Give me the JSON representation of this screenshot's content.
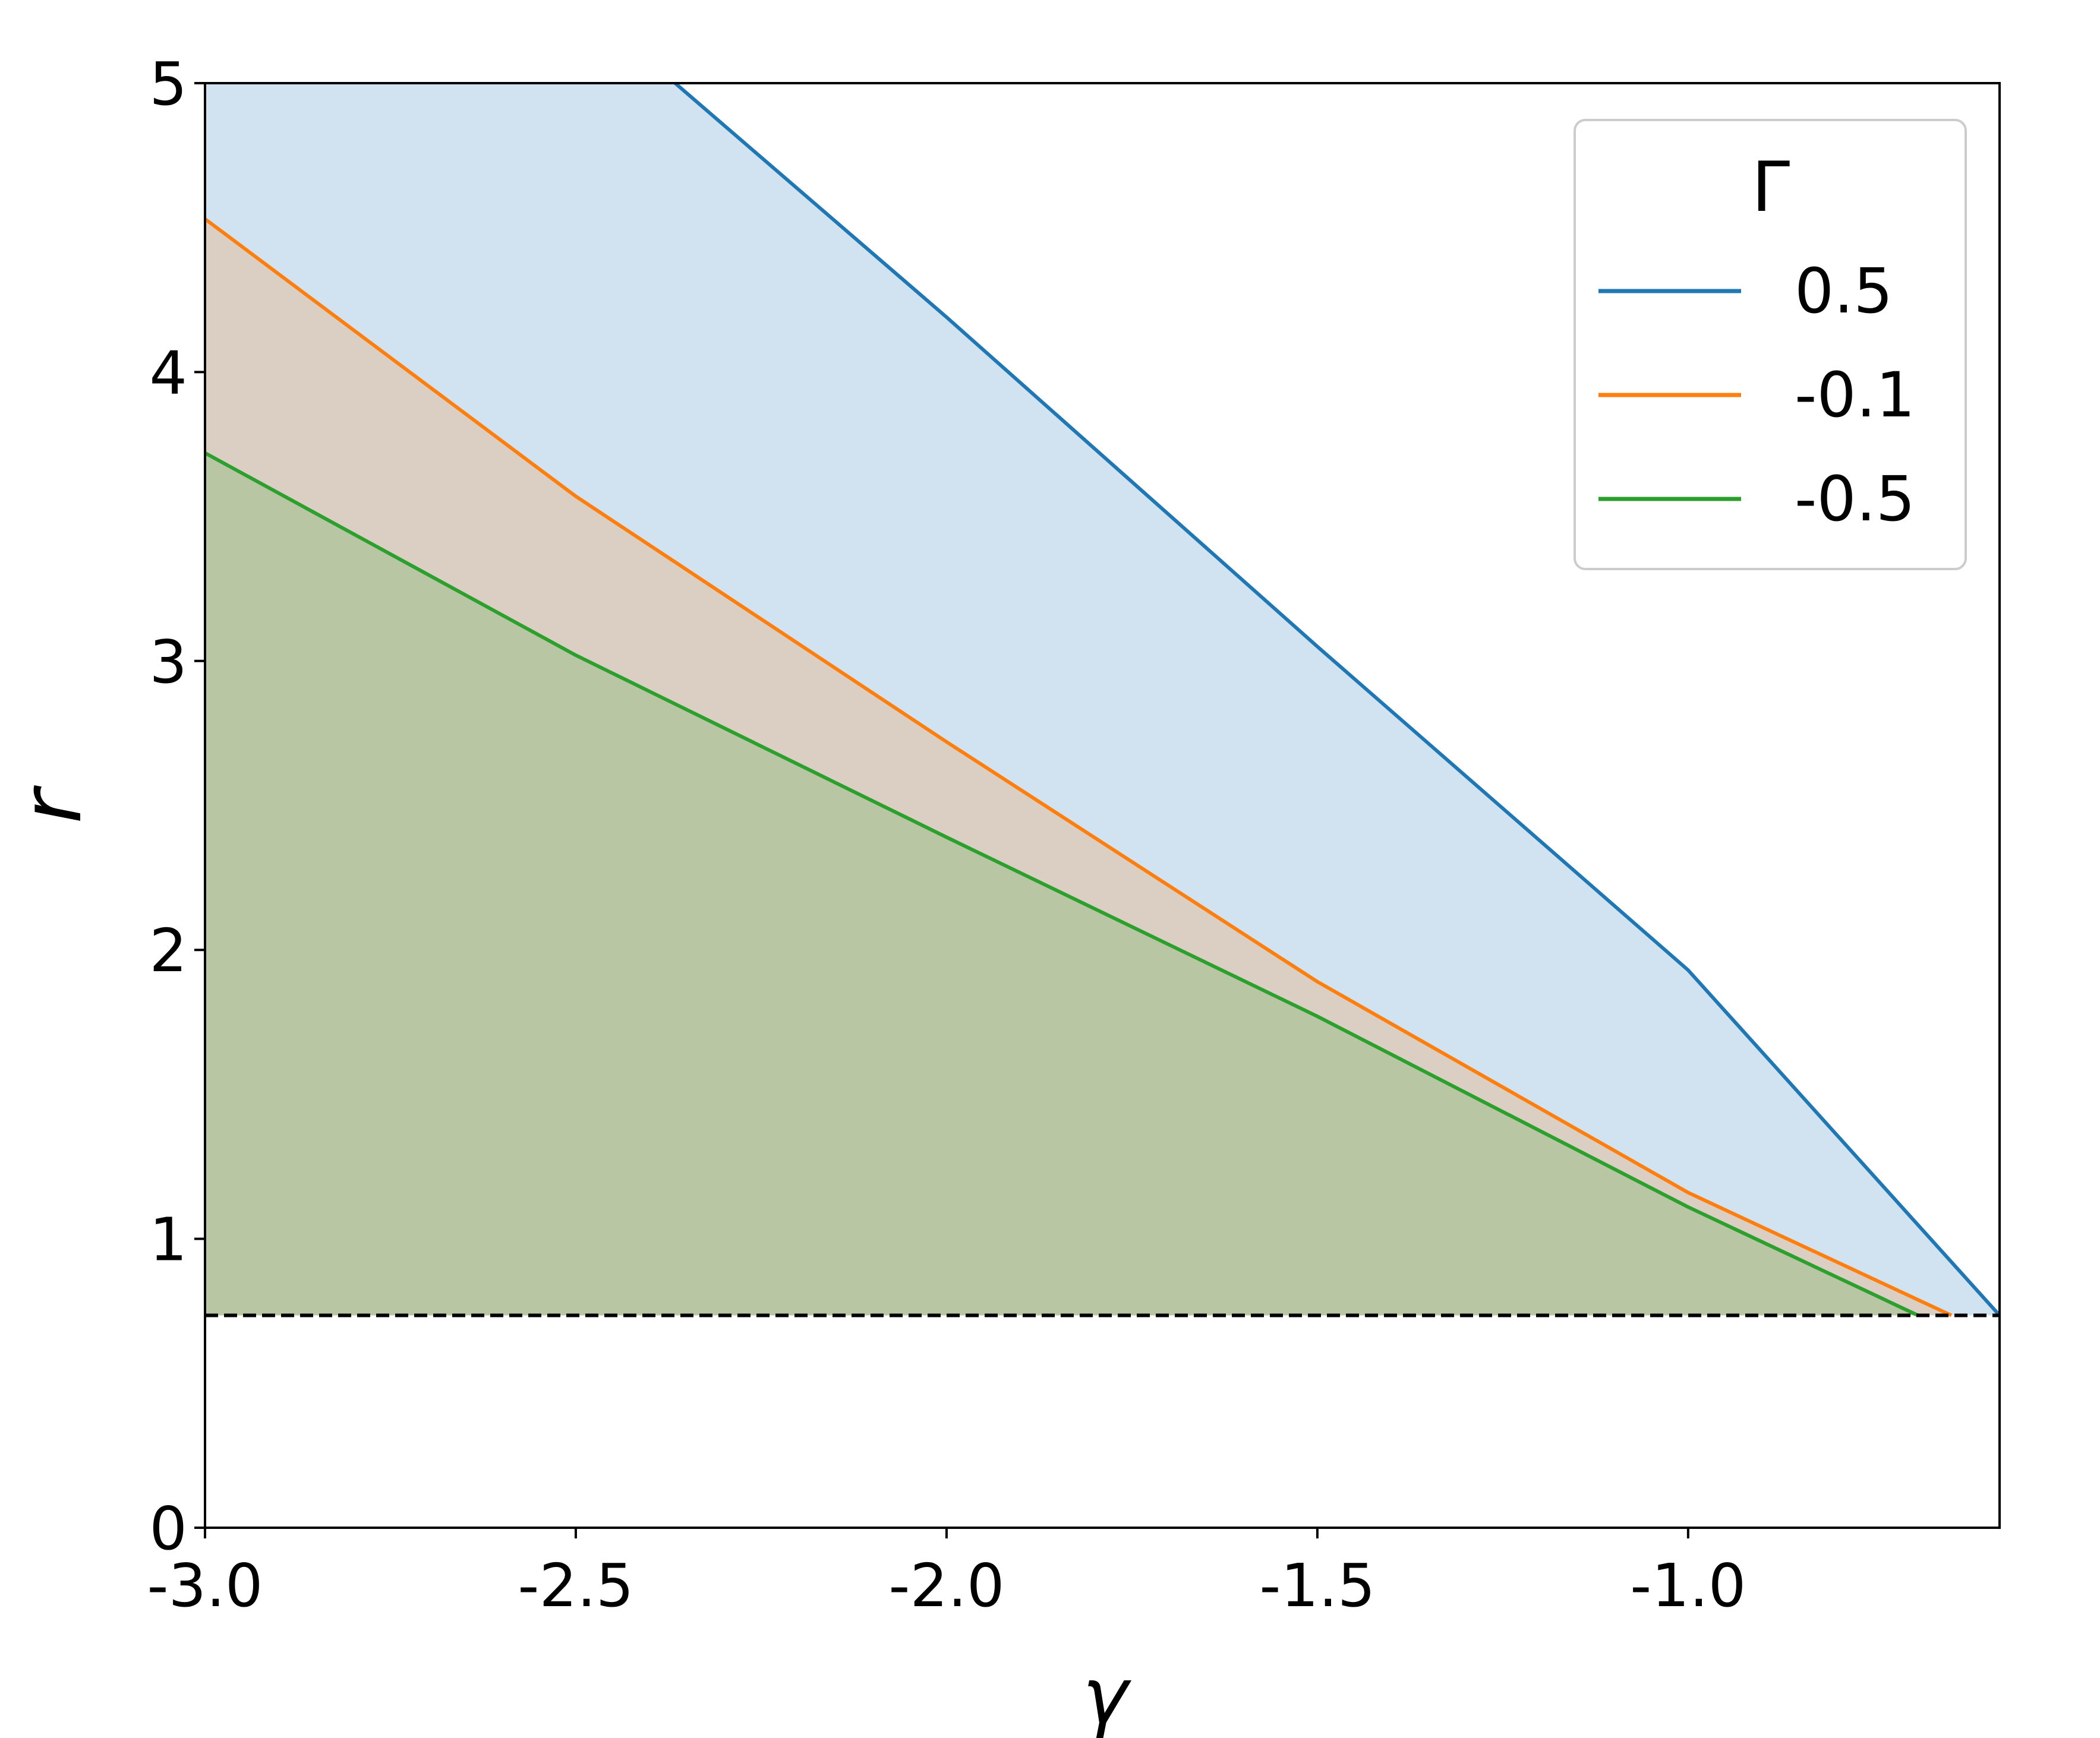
{
  "chart_data": {
    "type": "line",
    "xlabel": "γ",
    "ylabel": "r",
    "xlim": [
      -3.0,
      -0.58
    ],
    "ylim": [
      0,
      5
    ],
    "x_ticks": [
      -3.0,
      -2.5,
      -2.0,
      -1.5,
      -1.0
    ],
    "x_tick_labels": [
      "-3.0",
      "-2.5",
      "-2.0",
      "-1.5",
      "-1.0"
    ],
    "y_ticks": [
      0,
      1,
      2,
      3,
      4,
      5
    ],
    "y_tick_labels": [
      "0",
      "1",
      "2",
      "3",
      "4",
      "5"
    ],
    "grid": false,
    "legend": {
      "title": "Γ",
      "placement": "top-right"
    },
    "series": [
      {
        "name": "0.5",
        "color": "#1f77b4",
        "fill": "#d1e3f0",
        "x": [
          -3.0,
          -2.366,
          -2.0,
          -1.5,
          -1.0,
          -0.58
        ],
        "y": [
          6.07,
          5.0,
          4.19,
          3.05,
          1.93,
          0.735
        ]
      },
      {
        "name": "-0.1",
        "color": "#ff7f0e",
        "fill": "#dbcfc4",
        "x": [
          -3.0,
          -2.5,
          -2.0,
          -1.5,
          -1.0,
          -0.645
        ],
        "y": [
          4.53,
          3.57,
          2.72,
          1.89,
          1.16,
          0.735
        ]
      },
      {
        "name": "-0.5",
        "color": "#2ca02c",
        "fill": "#b8c6a4",
        "x": [
          -3.0,
          -2.5,
          -2.0,
          -1.5,
          -1.0,
          -0.69
        ],
        "y": [
          3.72,
          3.02,
          2.39,
          1.77,
          1.11,
          0.735
        ]
      }
    ],
    "reference_line": {
      "y": 0.735,
      "style": "dashed",
      "color": "#000000"
    }
  }
}
